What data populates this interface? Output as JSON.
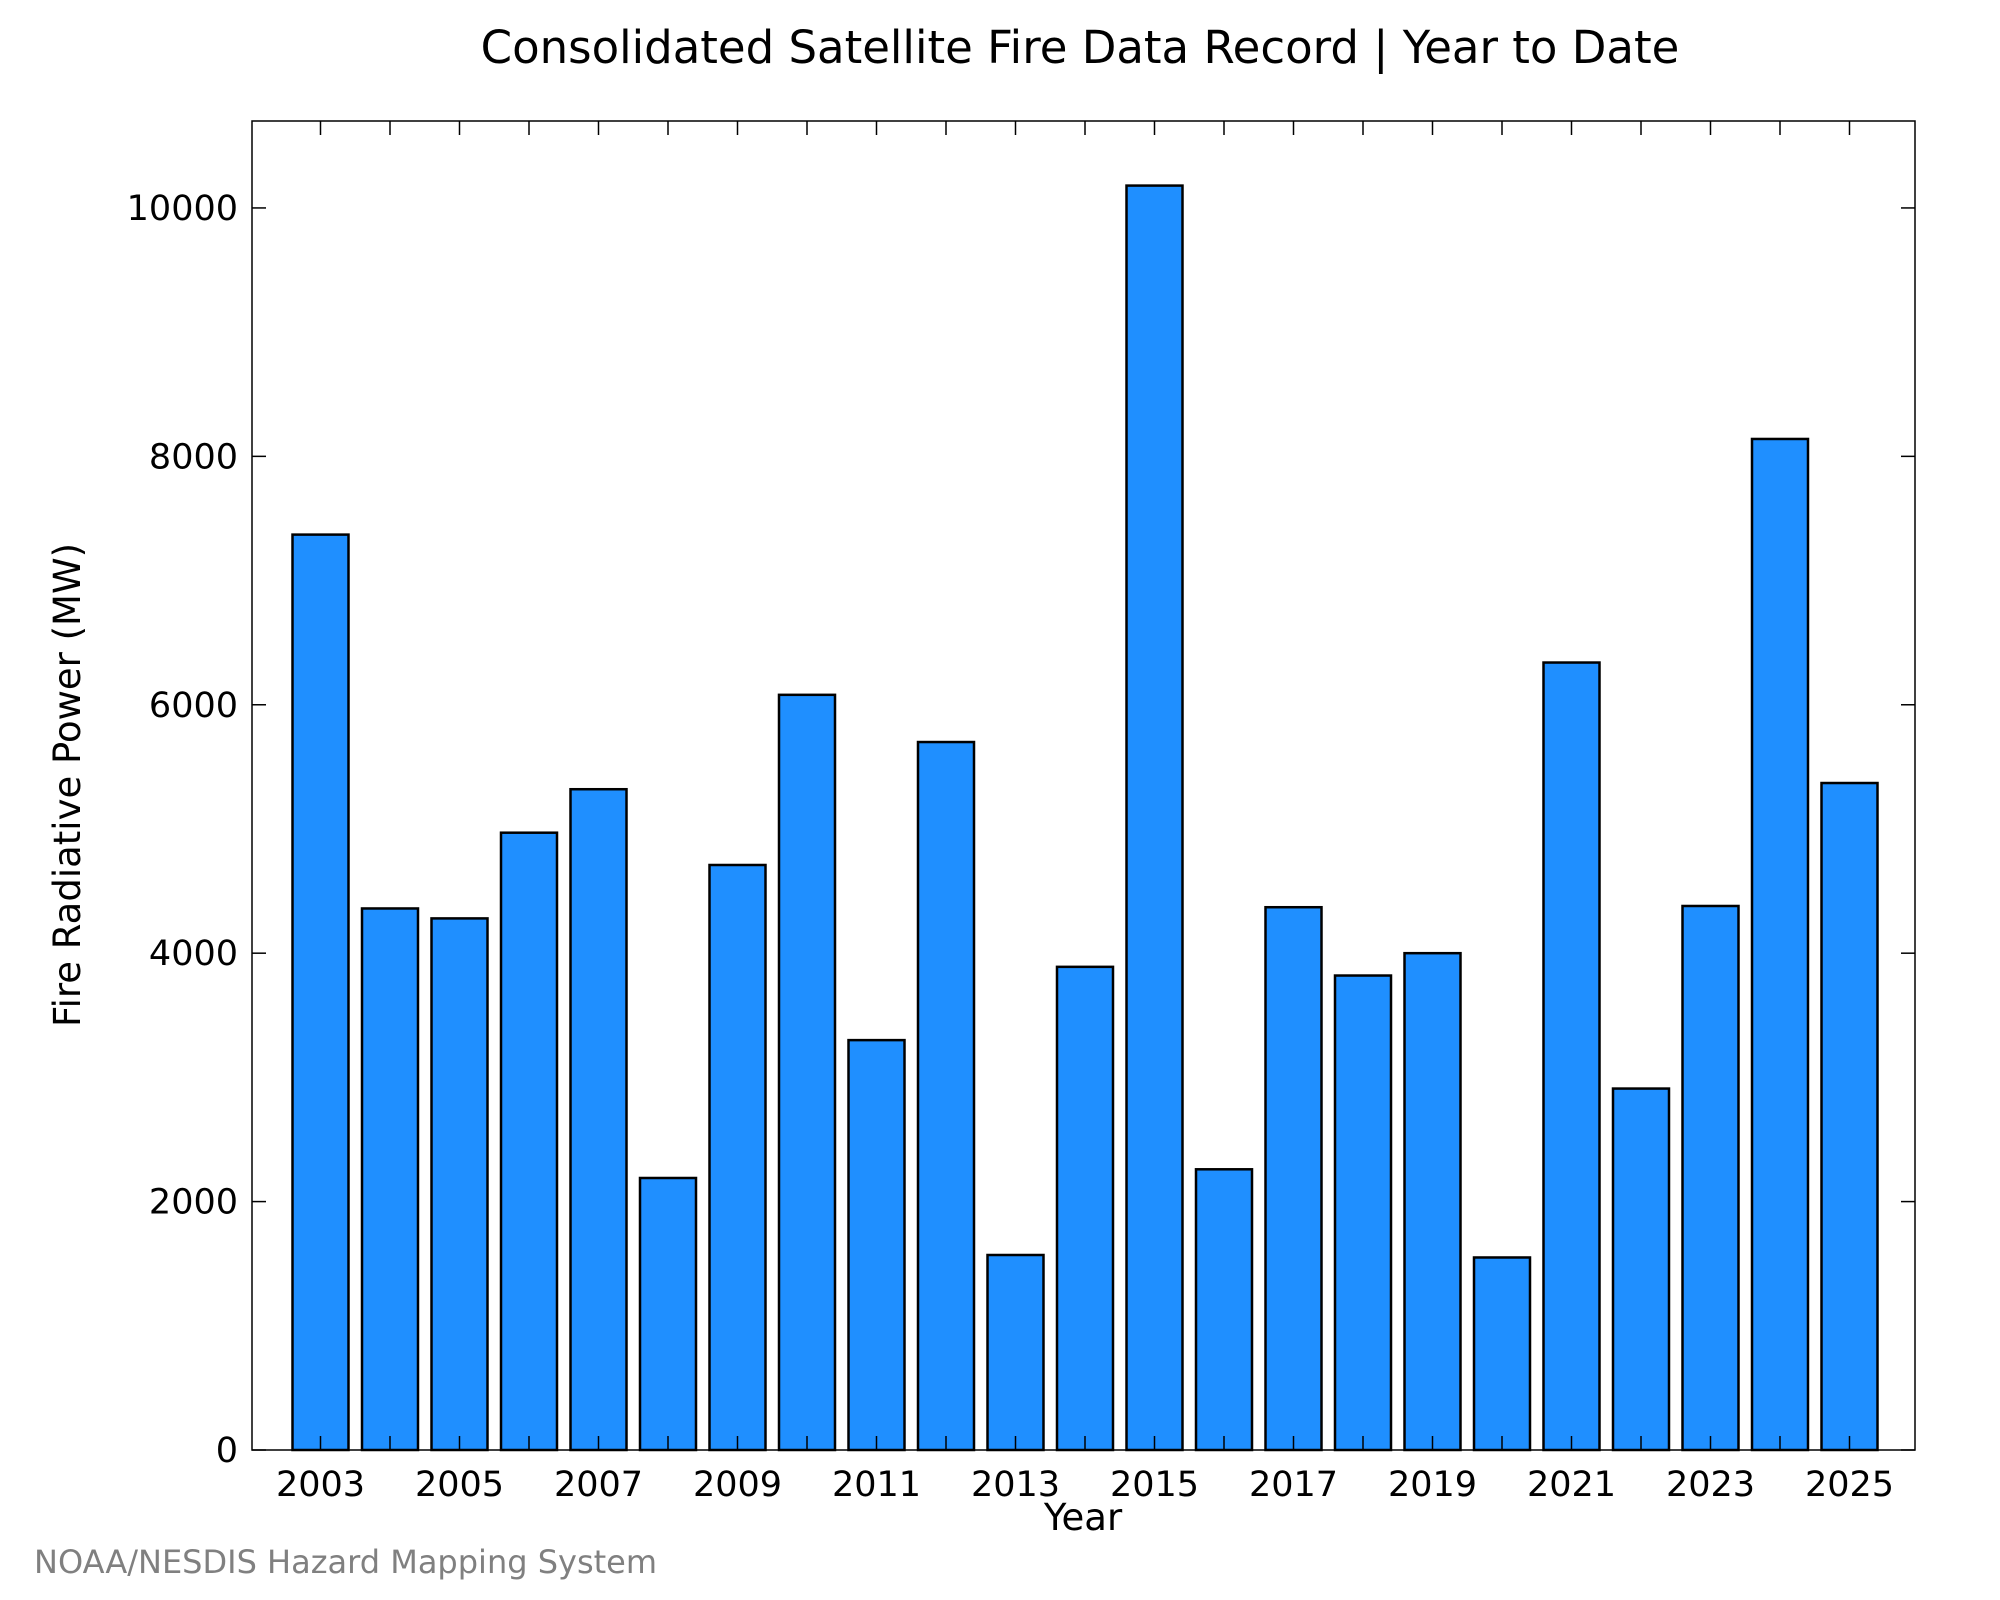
{
  "chart_data": {
    "type": "bar",
    "title": "Consolidated Satellite Fire Data Record | Year to Date",
    "xlabel": "Year",
    "ylabel": "Fire Radiative Power (MW)",
    "categories": [
      2003,
      2004,
      2005,
      2006,
      2007,
      2008,
      2009,
      2010,
      2011,
      2012,
      2013,
      2014,
      2015,
      2016,
      2017,
      2018,
      2019,
      2020,
      2021,
      2022,
      2023,
      2024,
      2025
    ],
    "values": [
      7370,
      4360,
      4280,
      4970,
      5320,
      2190,
      4710,
      6080,
      3300,
      5700,
      1570,
      3890,
      10180,
      2260,
      4370,
      3820,
      4000,
      1550,
      6340,
      2910,
      4380,
      8140,
      5370
    ],
    "x_tick_labels": [
      "2003",
      "2005",
      "2007",
      "2009",
      "2011",
      "2013",
      "2015",
      "2017",
      "2019",
      "2021",
      "2023",
      "2025"
    ],
    "y_tick_labels": [
      "0",
      "2000",
      "4000",
      "6000",
      "8000",
      "10000"
    ],
    "y_ticks": [
      0,
      2000,
      4000,
      6000,
      8000,
      10000
    ],
    "ylim": [
      0,
      10700
    ],
    "grid": false,
    "legend": "none",
    "bar_color": "#1f8fff",
    "bar_edge_color": "#000000"
  },
  "credit": {
    "text": "NOAA/NESDIS Hazard Mapping System",
    "color": "#808080"
  }
}
